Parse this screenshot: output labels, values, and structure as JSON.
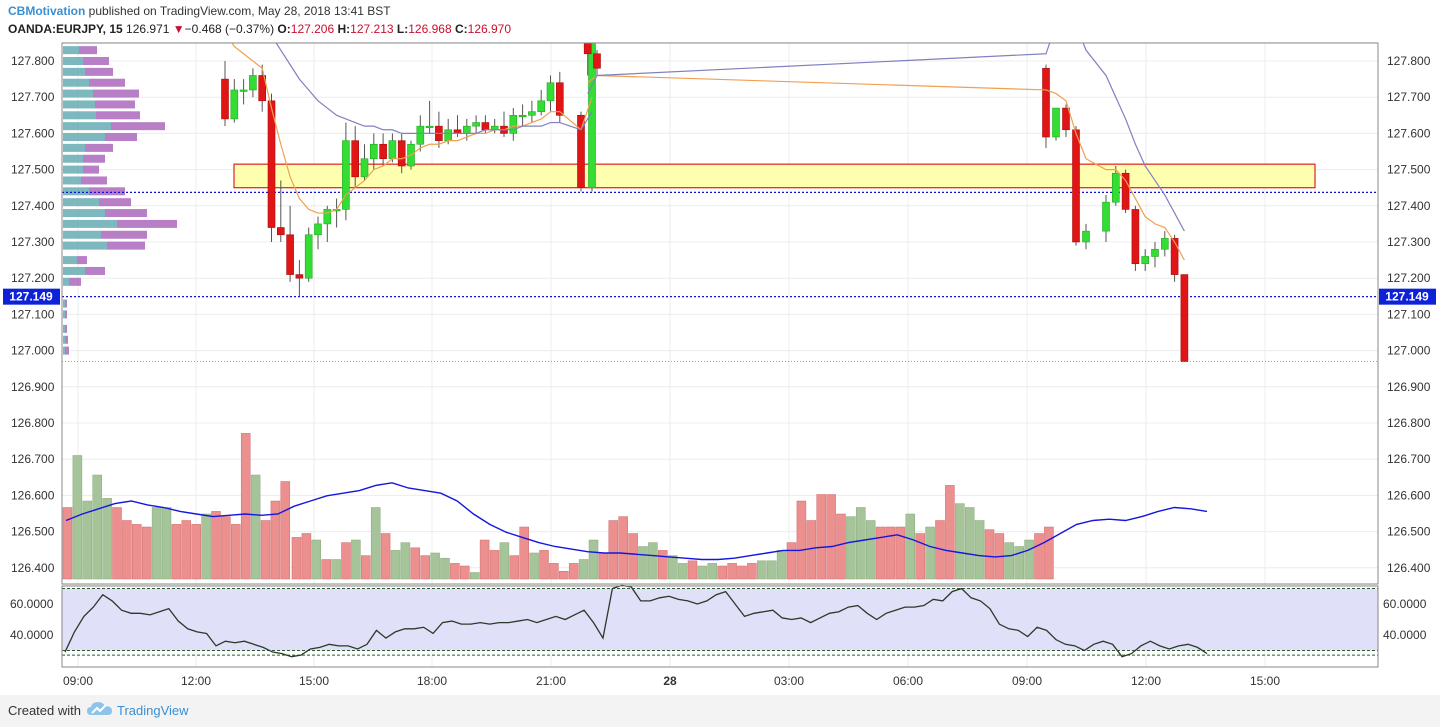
{
  "header": {
    "author": "CBMotivation",
    "published_text": "published on TradingView.com, May 28, 2018 13:41 BST",
    "symbol": "OANDA:EURJPY, 15",
    "last": "126.971",
    "change_arrow": "▼",
    "change": "−0.468 (−0.37%)",
    "o_label": "O:",
    "o_value": "127.206",
    "h_label": "H:",
    "h_value": "127.213",
    "l_label": "L:",
    "l_value": "126.968",
    "c_label": "C:",
    "c_value": "126.970"
  },
  "footer": {
    "created_with": "Created with",
    "brand": "TradingView",
    "logo_icon": "tradingview-cloud-icon"
  },
  "colors": {
    "up": "#33dd33",
    "down": "#e01515",
    "vol_up": "#a6c49a",
    "vol_down": "#ec8f8f",
    "ma_fast": "#f0a050",
    "ma_slow": "#8080c0",
    "vol_ma": "#1515e0",
    "zone_fill": "#ffffb0",
    "zone_border": "#e02020",
    "level_line": "#1010d0",
    "rsi_line": "#2a3a2a",
    "rsi_band": "#e0e0f8",
    "vp_up": "#6fb0b8",
    "vp_down": "#b070c0"
  },
  "chart_data": {
    "type": "candlestick",
    "symbol": "OANDA:EURJPY",
    "timeframe": "15",
    "x_tick_labels": [
      "09:00",
      "12:00",
      "15:00",
      "18:00",
      "21:00",
      "28",
      "03:00",
      "06:00",
      "09:00",
      "12:00",
      "15:00"
    ],
    "y_tick_labels": [
      "127.800",
      "127.700",
      "127.600",
      "127.500",
      "127.400",
      "127.300",
      "127.200",
      "127.100",
      "127.000",
      "126.900",
      "126.800",
      "126.700",
      "126.600",
      "126.500",
      "126.400"
    ],
    "ylim": [
      126.38,
      127.85
    ],
    "current_price_label": "127.149",
    "current_price": 127.149,
    "support_resistance_line": 127.437,
    "last_close_line": 126.97,
    "highlight_zone": [
      127.45,
      127.515
    ],
    "candles": [
      {
        "o": 127.75,
        "h": 127.8,
        "l": 127.62,
        "c": 127.64
      },
      {
        "o": 127.64,
        "h": 127.75,
        "l": 127.63,
        "c": 127.72
      },
      {
        "o": 127.72,
        "h": 127.75,
        "l": 127.68,
        "c": 127.72
      },
      {
        "o": 127.72,
        "h": 127.78,
        "l": 127.7,
        "c": 127.76
      },
      {
        "o": 127.76,
        "h": 127.79,
        "l": 127.66,
        "c": 127.69
      },
      {
        "o": 127.69,
        "h": 127.71,
        "l": 127.3,
        "c": 127.34
      },
      {
        "o": 127.34,
        "h": 127.47,
        "l": 127.3,
        "c": 127.32
      },
      {
        "o": 127.32,
        "h": 127.4,
        "l": 127.19,
        "c": 127.21
      },
      {
        "o": 127.21,
        "h": 127.25,
        "l": 127.15,
        "c": 127.2
      },
      {
        "o": 127.2,
        "h": 127.34,
        "l": 127.19,
        "c": 127.32
      },
      {
        "o": 127.32,
        "h": 127.37,
        "l": 127.28,
        "c": 127.35
      },
      {
        "o": 127.35,
        "h": 127.4,
        "l": 127.3,
        "c": 127.39
      },
      {
        "o": 127.39,
        "h": 127.42,
        "l": 127.34,
        "c": 127.39
      },
      {
        "o": 127.39,
        "h": 127.63,
        "l": 127.36,
        "c": 127.58
      },
      {
        "o": 127.58,
        "h": 127.62,
        "l": 127.45,
        "c": 127.48
      },
      {
        "o": 127.48,
        "h": 127.57,
        "l": 127.47,
        "c": 127.53
      },
      {
        "o": 127.53,
        "h": 127.6,
        "l": 127.5,
        "c": 127.57
      },
      {
        "o": 127.57,
        "h": 127.6,
        "l": 127.51,
        "c": 127.53
      },
      {
        "o": 127.53,
        "h": 127.6,
        "l": 127.52,
        "c": 127.58
      },
      {
        "o": 127.58,
        "h": 127.6,
        "l": 127.49,
        "c": 127.51
      },
      {
        "o": 127.51,
        "h": 127.58,
        "l": 127.5,
        "c": 127.57
      },
      {
        "o": 127.57,
        "h": 127.65,
        "l": 127.55,
        "c": 127.62
      },
      {
        "o": 127.62,
        "h": 127.69,
        "l": 127.6,
        "c": 127.62
      },
      {
        "o": 127.62,
        "h": 127.66,
        "l": 127.56,
        "c": 127.58
      },
      {
        "o": 127.58,
        "h": 127.64,
        "l": 127.57,
        "c": 127.61
      },
      {
        "o": 127.61,
        "h": 127.65,
        "l": 127.59,
        "c": 127.6
      },
      {
        "o": 127.6,
        "h": 127.64,
        "l": 127.58,
        "c": 127.62
      },
      {
        "o": 127.62,
        "h": 127.65,
        "l": 127.6,
        "c": 127.63
      },
      {
        "o": 127.63,
        "h": 127.65,
        "l": 127.6,
        "c": 127.61
      },
      {
        "o": 127.61,
        "h": 127.64,
        "l": 127.6,
        "c": 127.62
      },
      {
        "o": 127.62,
        "h": 127.66,
        "l": 127.59,
        "c": 127.6
      },
      {
        "o": 127.6,
        "h": 127.67,
        "l": 127.58,
        "c": 127.65
      },
      {
        "o": 127.65,
        "h": 127.68,
        "l": 127.62,
        "c": 127.65
      },
      {
        "o": 127.65,
        "h": 127.69,
        "l": 127.63,
        "c": 127.66
      },
      {
        "o": 127.66,
        "h": 127.72,
        "l": 127.65,
        "c": 127.69
      },
      {
        "o": 127.69,
        "h": 127.76,
        "l": 127.66,
        "c": 127.74
      },
      {
        "o": 127.74,
        "h": 127.77,
        "l": 127.63,
        "c": 127.65
      },
      {
        "o": 127.65,
        "h": 127.66,
        "l": 127.44,
        "c": 127.45
      },
      {
        "o": 127.45,
        "h": 127.85,
        "l": 127.44,
        "c": 127.85
      },
      {
        "o": 127.85,
        "h": 127.85,
        "l": 127.76,
        "c": 127.82
      },
      {
        "o": 127.82,
        "h": 127.83,
        "l": 127.76,
        "c": 127.78
      },
      {
        "o": 127.78,
        "h": 127.79,
        "l": 127.56,
        "c": 127.59
      },
      {
        "o": 127.59,
        "h": 127.67,
        "l": 127.58,
        "c": 127.67
      },
      {
        "o": 127.67,
        "h": 127.68,
        "l": 127.59,
        "c": 127.61
      },
      {
        "o": 127.61,
        "h": 127.62,
        "l": 127.29,
        "c": 127.3
      },
      {
        "o": 127.3,
        "h": 127.35,
        "l": 127.28,
        "c": 127.33
      },
      {
        "o": 127.33,
        "h": 127.43,
        "l": 127.3,
        "c": 127.41
      },
      {
        "o": 127.41,
        "h": 127.51,
        "l": 127.4,
        "c": 127.49
      },
      {
        "o": 127.49,
        "h": 127.5,
        "l": 127.38,
        "c": 127.39
      },
      {
        "o": 127.39,
        "h": 127.4,
        "l": 127.22,
        "c": 127.24
      },
      {
        "o": 127.24,
        "h": 127.28,
        "l": 127.22,
        "c": 127.26
      },
      {
        "o": 127.26,
        "h": 127.3,
        "l": 127.23,
        "c": 127.28
      },
      {
        "o": 127.28,
        "h": 127.33,
        "l": 127.26,
        "c": 127.31
      },
      {
        "o": 127.31,
        "h": 127.32,
        "l": 127.19,
        "c": 127.21
      },
      {
        "o": 127.21,
        "h": 127.21,
        "l": 126.97,
        "c": 126.97
      }
    ],
    "ma_fast": [
      127.88,
      127.84,
      127.82,
      127.8,
      127.78,
      127.67,
      127.57,
      127.48,
      127.42,
      127.39,
      127.38,
      127.38,
      127.39,
      127.43,
      127.45,
      127.47,
      127.5,
      127.51,
      127.53,
      127.53,
      127.54,
      127.56,
      127.57,
      127.57,
      127.58,
      127.58,
      127.59,
      127.6,
      127.6,
      127.61,
      127.61,
      127.62,
      127.62,
      127.63,
      127.64,
      127.66,
      127.66,
      127.61,
      127.7,
      127.74,
      127.76,
      127.72,
      127.71,
      127.69,
      127.6,
      127.53,
      127.5,
      127.5,
      127.47,
      127.42,
      127.37,
      127.35,
      127.34,
      127.3,
      127.25
    ],
    "ma_slow": [
      127.95,
      127.94,
      127.93,
      127.92,
      127.91,
      127.87,
      127.83,
      127.79,
      127.75,
      127.72,
      127.69,
      127.67,
      127.65,
      127.64,
      127.63,
      127.62,
      127.62,
      127.61,
      127.61,
      127.6,
      127.6,
      127.6,
      127.6,
      127.6,
      127.6,
      127.6,
      127.6,
      127.6,
      127.61,
      127.61,
      127.61,
      127.61,
      127.62,
      127.62,
      127.62,
      127.63,
      127.63,
      127.61,
      127.66,
      127.71,
      127.76,
      127.82,
      127.9,
      127.95,
      127.9,
      127.83,
      127.76,
      127.7,
      127.64,
      127.57,
      127.51,
      127.47,
      127.43,
      127.38,
      127.33
    ],
    "volume_profile": [
      {
        "price": 127.83,
        "up": 16,
        "down": 18
      },
      {
        "price": 127.8,
        "up": 20,
        "down": 26
      },
      {
        "price": 127.77,
        "up": 22,
        "down": 28
      },
      {
        "price": 127.74,
        "up": 26,
        "down": 36
      },
      {
        "price": 127.71,
        "up": 30,
        "down": 46
      },
      {
        "price": 127.68,
        "up": 32,
        "down": 40
      },
      {
        "price": 127.65,
        "up": 33,
        "down": 44
      },
      {
        "price": 127.62,
        "up": 48,
        "down": 54
      },
      {
        "price": 127.59,
        "up": 42,
        "down": 32
      },
      {
        "price": 127.56,
        "up": 22,
        "down": 28
      },
      {
        "price": 127.53,
        "up": 20,
        "down": 22
      },
      {
        "price": 127.5,
        "up": 20,
        "down": 16
      },
      {
        "price": 127.47,
        "up": 18,
        "down": 26
      },
      {
        "price": 127.44,
        "up": 26,
        "down": 36
      },
      {
        "price": 127.41,
        "up": 36,
        "down": 32
      },
      {
        "price": 127.38,
        "up": 42,
        "down": 42
      },
      {
        "price": 127.35,
        "up": 54,
        "down": 60
      },
      {
        "price": 127.32,
        "up": 38,
        "down": 46
      },
      {
        "price": 127.29,
        "up": 44,
        "down": 38
      },
      {
        "price": 127.25,
        "up": 14,
        "down": 10
      },
      {
        "price": 127.22,
        "up": 22,
        "down": 20
      },
      {
        "price": 127.19,
        "up": 6,
        "down": 12
      },
      {
        "price": 127.13,
        "up": 2,
        "down": 2
      },
      {
        "price": 127.1,
        "up": 2,
        "down": 2
      },
      {
        "price": 127.06,
        "up": 2,
        "down": 2
      },
      {
        "price": 127.03,
        "up": 2,
        "down": 3
      },
      {
        "price": 127.0,
        "up": 2,
        "down": 4
      }
    ],
    "volume_series_a": [
      {
        "v": 0.55,
        "up": false
      },
      {
        "v": 0.95,
        "up": true
      },
      {
        "v": 0.6,
        "up": true
      },
      {
        "v": 0.8,
        "up": true
      },
      {
        "v": 0.62,
        "up": true
      },
      {
        "v": 0.55,
        "up": false
      },
      {
        "v": 0.45,
        "up": false
      },
      {
        "v": 0.42,
        "up": false
      },
      {
        "v": 0.4,
        "up": false
      },
      {
        "v": 0.55,
        "up": true
      },
      {
        "v": 0.55,
        "up": true
      },
      {
        "v": 0.42,
        "up": false
      },
      {
        "v": 0.45,
        "up": false
      },
      {
        "v": 0.42,
        "up": false
      },
      {
        "v": 0.5,
        "up": true
      },
      {
        "v": 0.52,
        "up": false
      },
      {
        "v": 0.48,
        "up": false
      },
      {
        "v": 0.42,
        "up": false
      },
      {
        "v": 1.12,
        "up": false
      },
      {
        "v": 0.8,
        "up": true
      },
      {
        "v": 0.45,
        "up": false
      },
      {
        "v": 0.6,
        "up": false
      },
      {
        "v": 0.75,
        "up": false
      }
    ],
    "volume_series_b": [
      {
        "v": 0.32,
        "up": false
      },
      {
        "v": 0.35,
        "up": false
      },
      {
        "v": 0.3,
        "up": true
      },
      {
        "v": 0.15,
        "up": false
      },
      {
        "v": 0.15,
        "up": true
      },
      {
        "v": 0.28,
        "up": false
      },
      {
        "v": 0.3,
        "up": true
      },
      {
        "v": 0.18,
        "up": false
      },
      {
        "v": 0.55,
        "up": true
      },
      {
        "v": 0.35,
        "up": false
      },
      {
        "v": 0.22,
        "up": true
      },
      {
        "v": 0.28,
        "up": true
      },
      {
        "v": 0.24,
        "up": false
      },
      {
        "v": 0.18,
        "up": false
      },
      {
        "v": 0.2,
        "up": true
      },
      {
        "v": 0.16,
        "up": true
      },
      {
        "v": 0.12,
        "up": false
      },
      {
        "v": 0.1,
        "up": false
      },
      {
        "v": 0.05,
        "up": true
      },
      {
        "v": 0.3,
        "up": false
      },
      {
        "v": 0.22,
        "up": false
      },
      {
        "v": 0.28,
        "up": true
      },
      {
        "v": 0.18,
        "up": false
      },
      {
        "v": 0.4,
        "up": false
      },
      {
        "v": 0.2,
        "up": true
      },
      {
        "v": 0.22,
        "up": false
      },
      {
        "v": 0.12,
        "up": false
      },
      {
        "v": 0.06,
        "up": false
      },
      {
        "v": 0.12,
        "up": false
      },
      {
        "v": 0.15,
        "up": true
      },
      {
        "v": 0.3,
        "up": true
      },
      {
        "v": 0.2,
        "up": false
      },
      {
        "v": 0.45,
        "up": false
      },
      {
        "v": 0.48,
        "up": false
      },
      {
        "v": 0.35,
        "up": false
      },
      {
        "v": 0.25,
        "up": true
      },
      {
        "v": 0.28,
        "up": true
      },
      {
        "v": 0.22,
        "up": false
      },
      {
        "v": 0.18,
        "up": true
      },
      {
        "v": 0.12,
        "up": true
      },
      {
        "v": 0.14,
        "up": false
      },
      {
        "v": 0.1,
        "up": true
      },
      {
        "v": 0.12,
        "up": true
      },
      {
        "v": 0.1,
        "up": false
      },
      {
        "v": 0.12,
        "up": false
      },
      {
        "v": 0.1,
        "up": false
      },
      {
        "v": 0.12,
        "up": false
      },
      {
        "v": 0.14,
        "up": true
      },
      {
        "v": 0.14,
        "up": true
      },
      {
        "v": 0.22,
        "up": true
      },
      {
        "v": 0.28,
        "up": false
      },
      {
        "v": 0.6,
        "up": false
      },
      {
        "v": 0.45,
        "up": false
      },
      {
        "v": 0.65,
        "up": false
      },
      {
        "v": 0.65,
        "up": false
      },
      {
        "v": 0.5,
        "up": false
      },
      {
        "v": 0.48,
        "up": true
      },
      {
        "v": 0.55,
        "up": true
      },
      {
        "v": 0.45,
        "up": true
      },
      {
        "v": 0.4,
        "up": false
      },
      {
        "v": 0.4,
        "up": false
      },
      {
        "v": 0.4,
        "up": false
      },
      {
        "v": 0.5,
        "up": true
      },
      {
        "v": 0.35,
        "up": false
      },
      {
        "v": 0.4,
        "up": true
      },
      {
        "v": 0.45,
        "up": false
      },
      {
        "v": 0.72,
        "up": false
      },
      {
        "v": 0.58,
        "up": true
      },
      {
        "v": 0.55,
        "up": true
      },
      {
        "v": 0.45,
        "up": true
      },
      {
        "v": 0.38,
        "up": false
      },
      {
        "v": 0.35,
        "up": false
      },
      {
        "v": 0.28,
        "up": true
      },
      {
        "v": 0.25,
        "up": true
      },
      {
        "v": 0.3,
        "up": true
      },
      {
        "v": 0.35,
        "up": false
      },
      {
        "v": 0.4,
        "up": false
      }
    ],
    "volume_ma": [
      0.45,
      0.5,
      0.54,
      0.58,
      0.6,
      0.57,
      0.55,
      0.52,
      0.5,
      0.48,
      0.49,
      0.5,
      0.49,
      0.5,
      0.56,
      0.6,
      0.64,
      0.66,
      0.68,
      0.72,
      0.74,
      0.7,
      0.68,
      0.66,
      0.6,
      0.5,
      0.42,
      0.36,
      0.32,
      0.28,
      0.25,
      0.23,
      0.21,
      0.2,
      0.2,
      0.19,
      0.18,
      0.17,
      0.16,
      0.15,
      0.15,
      0.16,
      0.18,
      0.2,
      0.22,
      0.22,
      0.24,
      0.25,
      0.28,
      0.3,
      0.32,
      0.34,
      0.3,
      0.25,
      0.22,
      0.2,
      0.18,
      0.17,
      0.18,
      0.22,
      0.28,
      0.35,
      0.42,
      0.45,
      0.46,
      0.45,
      0.48,
      0.52,
      0.55,
      0.54,
      0.52
    ],
    "rsi": {
      "y_tick_labels": [
        "60.0000",
        "40.0000"
      ],
      "ylim": [
        22,
        74
      ],
      "upper_band": 70,
      "lower_band": 30,
      "extra_level": 27,
      "values": [
        29,
        42,
        52,
        58,
        66,
        62,
        56,
        54,
        54,
        53,
        55,
        57,
        49,
        44,
        42,
        41,
        33,
        36,
        35,
        36,
        34,
        32,
        29,
        28,
        26,
        27,
        31,
        32,
        34,
        33,
        33,
        31,
        34,
        43,
        38,
        42,
        44,
        44,
        45,
        41,
        48,
        49,
        47,
        47,
        48,
        47,
        48,
        48,
        49,
        50,
        48,
        50,
        52,
        50,
        53,
        56,
        48,
        38,
        70,
        72,
        71,
        62,
        62,
        64,
        65,
        63,
        62,
        60,
        62,
        66,
        68,
        60,
        52,
        54,
        55,
        56,
        51,
        50,
        51,
        48,
        51,
        54,
        55,
        58,
        59,
        54,
        50,
        54,
        56,
        58,
        58,
        59,
        63,
        62,
        68,
        70,
        64,
        62,
        57,
        47,
        44,
        43,
        39,
        45,
        43,
        37,
        34,
        33,
        30,
        34,
        36,
        34,
        26,
        28,
        33,
        36,
        33,
        31,
        33,
        34,
        32,
        28
      ]
    }
  }
}
